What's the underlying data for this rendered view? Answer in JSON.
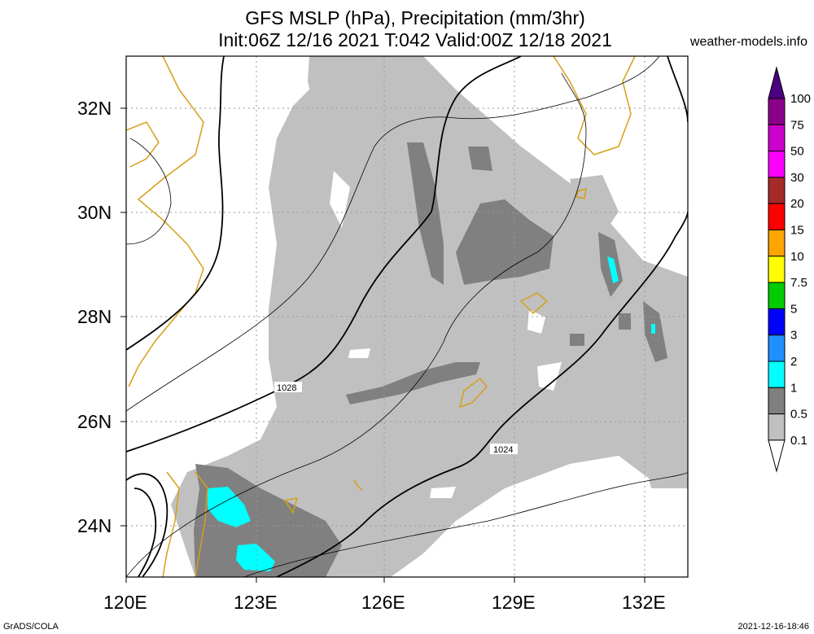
{
  "header": {
    "title_line1": "GFS MSLP (hPa), Precipitation (mm/3hr)",
    "title_line2": "Init:06Z 12/16 2021 T:042 Valid:00Z 12/18 2021",
    "site": "weather-models.info"
  },
  "footer": {
    "left": "GrADS/COLA",
    "right": "2021-12-16-18:46"
  },
  "map": {
    "lon_labels": [
      "120E",
      "123E",
      "126E",
      "129E",
      "132E"
    ],
    "lat_labels": [
      "32N",
      "30N",
      "28N",
      "26N",
      "24N"
    ],
    "isobar_labels": [
      "1028",
      "1024"
    ]
  },
  "colorbar": {
    "levels": [
      {
        "label": "100",
        "color": "#4b0082"
      },
      {
        "label": "75",
        "color": "#8b008b"
      },
      {
        "label": "50",
        "color": "#cc00cc"
      },
      {
        "label": "30",
        "color": "#ff00ff"
      },
      {
        "label": "20",
        "color": "#a52a2a"
      },
      {
        "label": "15",
        "color": "#ff0000"
      },
      {
        "label": "10",
        "color": "#ffa500"
      },
      {
        "label": "7.5",
        "color": "#ffff00"
      },
      {
        "label": "5",
        "color": "#00cc00"
      },
      {
        "label": "3",
        "color": "#0000ff"
      },
      {
        "label": "2",
        "color": "#1e90ff"
      },
      {
        "label": "1",
        "color": "#00ffff"
      },
      {
        "label": "0.5",
        "color": "#808080"
      },
      {
        "label": "0.1",
        "color": "#c0c0c0"
      }
    ]
  },
  "colors": {
    "light_precip": "#c0c0c0",
    "moderate_precip": "#808080",
    "heavy_precip": "#00ffff",
    "coastline": "#d4a017"
  }
}
